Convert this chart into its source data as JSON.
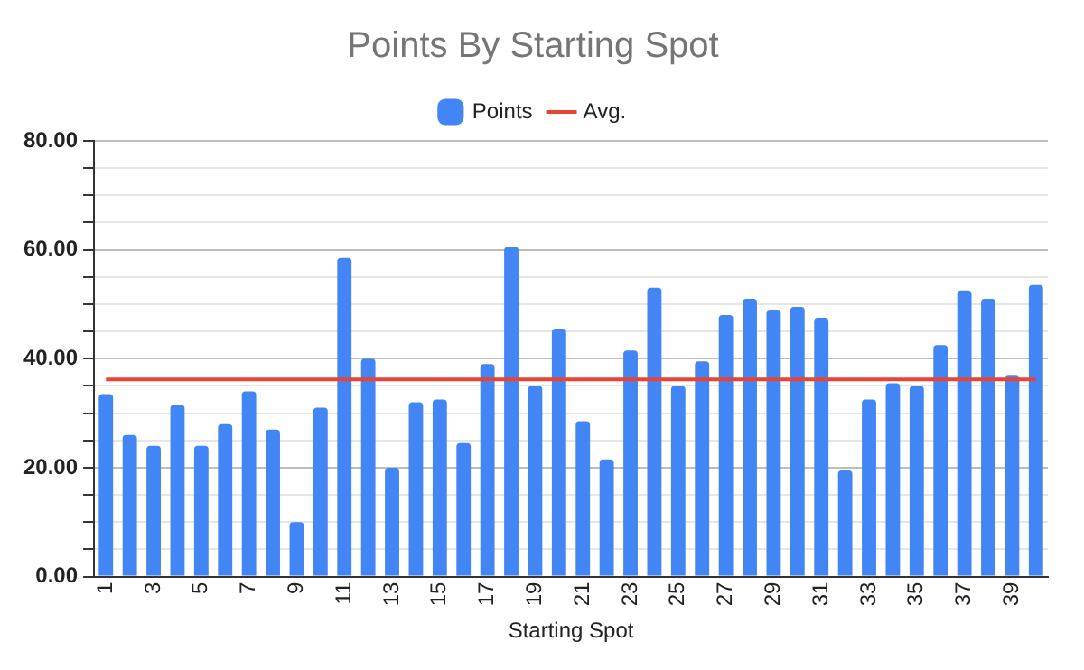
{
  "chart_data": {
    "type": "bar",
    "title": "Points By Starting Spot",
    "xlabel": "Starting Spot",
    "categories": [
      "1",
      null,
      "3",
      null,
      "5",
      null,
      "7",
      null,
      "9",
      null,
      "11",
      null,
      "13",
      null,
      "15",
      null,
      "17",
      null,
      "19",
      null,
      "21",
      null,
      "23",
      null,
      "25",
      null,
      "27",
      null,
      "29",
      null,
      "31",
      null,
      "33",
      null,
      "35",
      null,
      "37",
      null,
      "39",
      null
    ],
    "series": [
      {
        "name": "Points",
        "color": "#4285f4",
        "values": [
          33.5,
          26,
          24,
          31.5,
          24,
          28,
          34,
          27,
          10,
          31,
          58.5,
          40,
          20,
          32,
          32.5,
          24.5,
          39,
          60.5,
          35,
          45.5,
          28.5,
          21.5,
          41.5,
          53,
          35,
          39.5,
          48,
          51,
          49,
          49.5,
          47.5,
          19.5,
          32.5,
          35.5,
          35,
          42.5,
          52.5,
          51,
          37,
          53.5
        ]
      },
      {
        "name": "Avg.",
        "type": "line",
        "color": "#ea4335",
        "values": [
          36.2,
          36.2,
          36.2,
          36.2,
          36.2,
          36.2,
          36.2,
          36.2,
          36.2,
          36.2,
          36.2,
          36.2,
          36.2,
          36.2,
          36.2,
          36.2,
          36.2,
          36.2,
          36.2,
          36.2,
          36.2,
          36.2,
          36.2,
          36.2,
          36.2,
          36.2,
          36.2,
          36.2,
          36.2,
          36.2,
          36.2,
          36.2,
          36.2,
          36.2,
          36.2,
          36.2,
          36.2,
          36.2,
          36.2,
          36.2
        ]
      }
    ],
    "ylim": [
      0,
      80
    ],
    "yticks": [
      {
        "value": 0,
        "label": "0.00"
      },
      {
        "value": 5,
        "label": null
      },
      {
        "value": 10,
        "label": null
      },
      {
        "value": 15,
        "label": null
      },
      {
        "value": 20,
        "label": "20.00"
      },
      {
        "value": 25,
        "label": null
      },
      {
        "value": 30,
        "label": null
      },
      {
        "value": 35,
        "label": null
      },
      {
        "value": 40,
        "label": "40.00"
      },
      {
        "value": 45,
        "label": null
      },
      {
        "value": 50,
        "label": null
      },
      {
        "value": 55,
        "label": null
      },
      {
        "value": 60,
        "label": "60.00"
      },
      {
        "value": 65,
        "label": null
      },
      {
        "value": 70,
        "label": null
      },
      {
        "value": 75,
        "label": null
      },
      {
        "value": 80,
        "label": "80.00"
      }
    ],
    "grid": "y",
    "legend": "top"
  }
}
